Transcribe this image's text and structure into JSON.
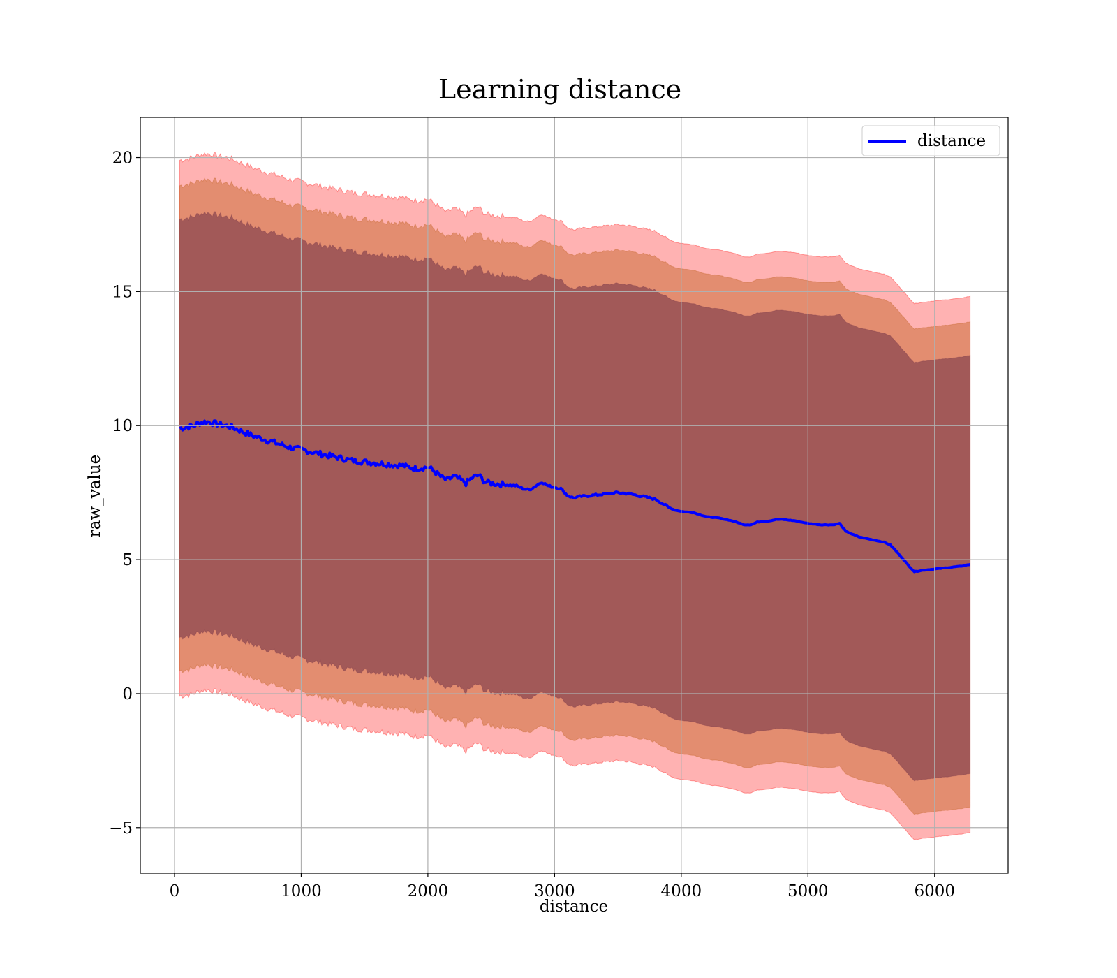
{
  "chart_data": {
    "type": "area",
    "title": "Learning distance",
    "xlabel": "distance",
    "ylabel": "raw_value",
    "xlim": [
      -270,
      6580
    ],
    "ylim": [
      -6.7,
      21.5
    ],
    "xticks": [
      0,
      1000,
      2000,
      3000,
      4000,
      5000,
      6000
    ],
    "yticks": [
      -5,
      0,
      5,
      10,
      15,
      20
    ],
    "xtick_labels": [
      "0",
      "1000",
      "2000",
      "3000",
      "4000",
      "5000",
      "6000"
    ],
    "ytick_labels": [
      "−5",
      "0",
      "5",
      "10",
      "15",
      "20"
    ],
    "grid": true,
    "legend": {
      "position": "top-right",
      "entries": [
        "distance"
      ]
    },
    "colors": {
      "line": "#0000ff",
      "band_outer": "#ff0000",
      "band_middle": "#c06020",
      "band_inner": "#7a3a4a",
      "grid": "#b0b0b0"
    },
    "series": [
      {
        "name": "distance",
        "x": [
          40,
          100,
          150,
          200,
          250,
          300,
          350,
          400,
          450,
          500,
          600,
          700,
          800,
          900,
          1000,
          1100,
          1200,
          1300,
          1400,
          1500,
          1600,
          1700,
          1800,
          1900,
          2000,
          2050,
          2100,
          2150,
          2200,
          2250,
          2300,
          2350,
          2400,
          2450,
          2500,
          2600,
          2700,
          2750,
          2800,
          2850,
          2900,
          2950,
          3000,
          3050,
          3100,
          3150,
          3200,
          3300,
          3400,
          3500,
          3600,
          3700,
          3800,
          3850,
          3900,
          3950,
          4000,
          4100,
          4200,
          4300,
          4400,
          4500,
          4550,
          4600,
          4700,
          4750,
          4800,
          4900,
          5000,
          5100,
          5200,
          5250,
          5300,
          5400,
          5500,
          5600,
          5650,
          5700,
          5800,
          5840,
          5900,
          6000,
          6100,
          6200,
          6280
        ],
        "y": [
          9.9,
          9.95,
          10.0,
          10.1,
          10.15,
          10.1,
          10.05,
          10.0,
          9.95,
          9.85,
          9.65,
          9.5,
          9.35,
          9.2,
          9.1,
          9.0,
          8.9,
          8.8,
          8.7,
          8.65,
          8.6,
          8.55,
          8.5,
          8.4,
          8.45,
          8.3,
          8.1,
          7.95,
          8.1,
          8.0,
          7.85,
          8.05,
          8.15,
          7.9,
          7.85,
          7.8,
          7.75,
          7.65,
          7.6,
          7.75,
          7.9,
          7.75,
          7.7,
          7.65,
          7.4,
          7.3,
          7.35,
          7.4,
          7.45,
          7.5,
          7.45,
          7.35,
          7.25,
          7.1,
          6.95,
          6.85,
          6.8,
          6.75,
          6.6,
          6.55,
          6.45,
          6.3,
          6.3,
          6.4,
          6.45,
          6.5,
          6.5,
          6.45,
          6.35,
          6.3,
          6.3,
          6.35,
          6.05,
          5.85,
          5.75,
          5.65,
          5.55,
          5.3,
          4.75,
          4.55,
          4.6,
          4.65,
          4.7,
          4.75,
          4.82
        ]
      }
    ],
    "bands": [
      {
        "level": "outer",
        "offset": 10.0
      },
      {
        "level": "middle",
        "offset": 9.05
      },
      {
        "level": "inner",
        "offset": 7.8
      }
    ]
  }
}
